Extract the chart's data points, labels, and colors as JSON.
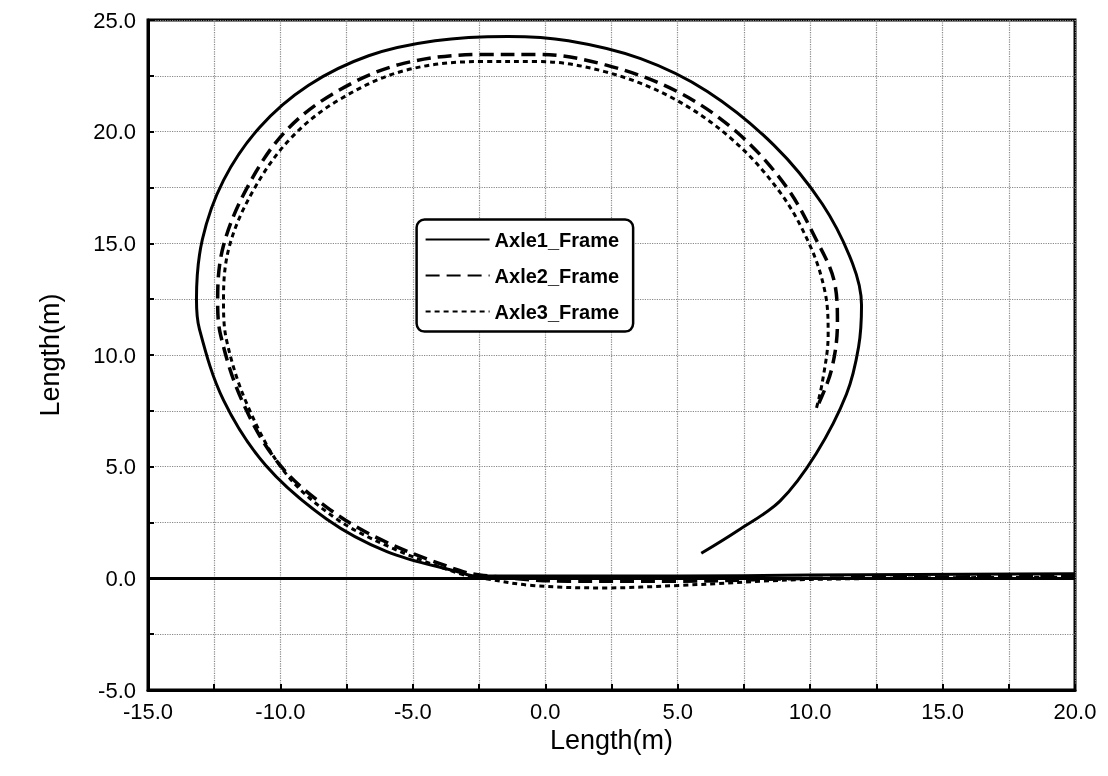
{
  "chart_data": {
    "type": "line",
    "xlabel": "Length(m)",
    "ylabel": "Length(m)",
    "xlim": [
      -15,
      20
    ],
    "ylim": [
      -5,
      25
    ],
    "xticks": [
      {
        "value": -15,
        "label": "-15.0"
      },
      {
        "value": -12.5,
        "label": null
      },
      {
        "value": -10,
        "label": "-10.0"
      },
      {
        "value": -7.5,
        "label": null
      },
      {
        "value": -5,
        "label": "-5.0"
      },
      {
        "value": -2.5,
        "label": null
      },
      {
        "value": 0,
        "label": "0.0"
      },
      {
        "value": 2.5,
        "label": null
      },
      {
        "value": 5,
        "label": "5.0"
      },
      {
        "value": 7.5,
        "label": null
      },
      {
        "value": 10,
        "label": "10.0"
      },
      {
        "value": 12.5,
        "label": null
      },
      {
        "value": 15,
        "label": "15.0"
      },
      {
        "value": 17.5,
        "label": null
      },
      {
        "value": 20,
        "label": "20.0"
      }
    ],
    "yticks": [
      {
        "value": -5,
        "label": "-5.0"
      },
      {
        "value": -2.5,
        "label": null
      },
      {
        "value": 0,
        "label": "0.0"
      },
      {
        "value": 2.5,
        "label": null
      },
      {
        "value": 5,
        "label": "5.0"
      },
      {
        "value": 7.5,
        "label": null
      },
      {
        "value": 10,
        "label": "10.0"
      },
      {
        "value": 12.5,
        "label": null
      },
      {
        "value": 15,
        "label": "15.0"
      },
      {
        "value": 17.5,
        "label": null
      },
      {
        "value": 20,
        "label": "20.0"
      },
      {
        "value": 22.5,
        "label": null
      },
      {
        "value": 25,
        "label": "25.0"
      }
    ],
    "grid": true,
    "legend": "center",
    "marker": "none",
    "ref_lines": [
      {
        "axis": "y",
        "value": 0,
        "color": "#000000",
        "line_style": "solid"
      }
    ],
    "series": [
      {
        "name": "Axle1_Frame",
        "color": "#000000",
        "line_style": "solid",
        "x": [
          20,
          10,
          5,
          0,
          -2.6,
          -3.24,
          -5.98,
          -8.26,
          -10.55,
          -12.15,
          -13.06,
          -13.17,
          -12.95,
          -12.15,
          -10.78,
          -8.95,
          -6.67,
          -4.16,
          -1.42,
          0.87,
          3.6,
          6.12,
          8.63,
          10.46,
          11.6,
          11.94,
          11.83,
          11.37,
          10.23,
          8.86,
          7.26,
          5.89
        ],
        "values": [
          0.2,
          0.15,
          0.1,
          0.1,
          0.1,
          0.27,
          1.2,
          2.66,
          5.05,
          7.98,
          11.17,
          12.5,
          15.16,
          17.82,
          20.2,
          22.07,
          23.4,
          24.07,
          24.26,
          24.07,
          23.27,
          21.8,
          19.4,
          16.76,
          14.1,
          12.23,
          10.37,
          8.24,
          5.59,
          3.46,
          2.13,
          1.12
        ]
      },
      {
        "name": "Axle2_Frame",
        "color": "#000000",
        "line_style": "dashed",
        "x": [
          20,
          10,
          5,
          0.87,
          -2.33,
          -3.24,
          -6.2,
          -8.26,
          -10.1,
          -11.46,
          -12.26,
          -12.37,
          -12.15,
          -11.23,
          -9.86,
          -8.04,
          -5.53,
          -2.33,
          -0.27,
          2.24,
          4.98,
          7.26,
          9.09,
          10.23,
          10.91,
          11.03,
          10.8,
          10.23
        ],
        "values": [
          0.1,
          0,
          -0.13,
          -0.13,
          0.13,
          0.35,
          1.73,
          3.19,
          5.19,
          7.98,
          10.9,
          12.5,
          14.9,
          17.55,
          19.95,
          21.68,
          23.0,
          23.46,
          23.46,
          23.0,
          21.8,
          19.95,
          17.55,
          15.16,
          13.3,
          11.44,
          9.31,
          7.58
        ]
      },
      {
        "name": "Axle3_Frame",
        "color": "#000000",
        "line_style": "dotted",
        "x": [
          20,
          10,
          5,
          2.24,
          -0.5,
          -2.33,
          -3.24,
          -5.98,
          -8.04,
          -9.86,
          -11.23,
          -12.03,
          -12.15,
          -11.92,
          -11.0,
          -9.63,
          -7.81,
          -5.3,
          -2.33,
          -0.27,
          2.24,
          4.75,
          7.03,
          8.86,
          10.0,
          10.57,
          10.68,
          10.46,
          10.23
        ],
        "values": [
          0.05,
          -0.05,
          -0.32,
          -0.43,
          -0.32,
          0,
          0.21,
          1.46,
          2.79,
          4.79,
          7.71,
          10.64,
          12.5,
          14.9,
          17.42,
          19.68,
          21.41,
          22.74,
          23.14,
          23.14,
          22.69,
          21.54,
          19.68,
          17.29,
          14.89,
          12.77,
          10.9,
          8.78,
          7.58
        ]
      }
    ]
  }
}
